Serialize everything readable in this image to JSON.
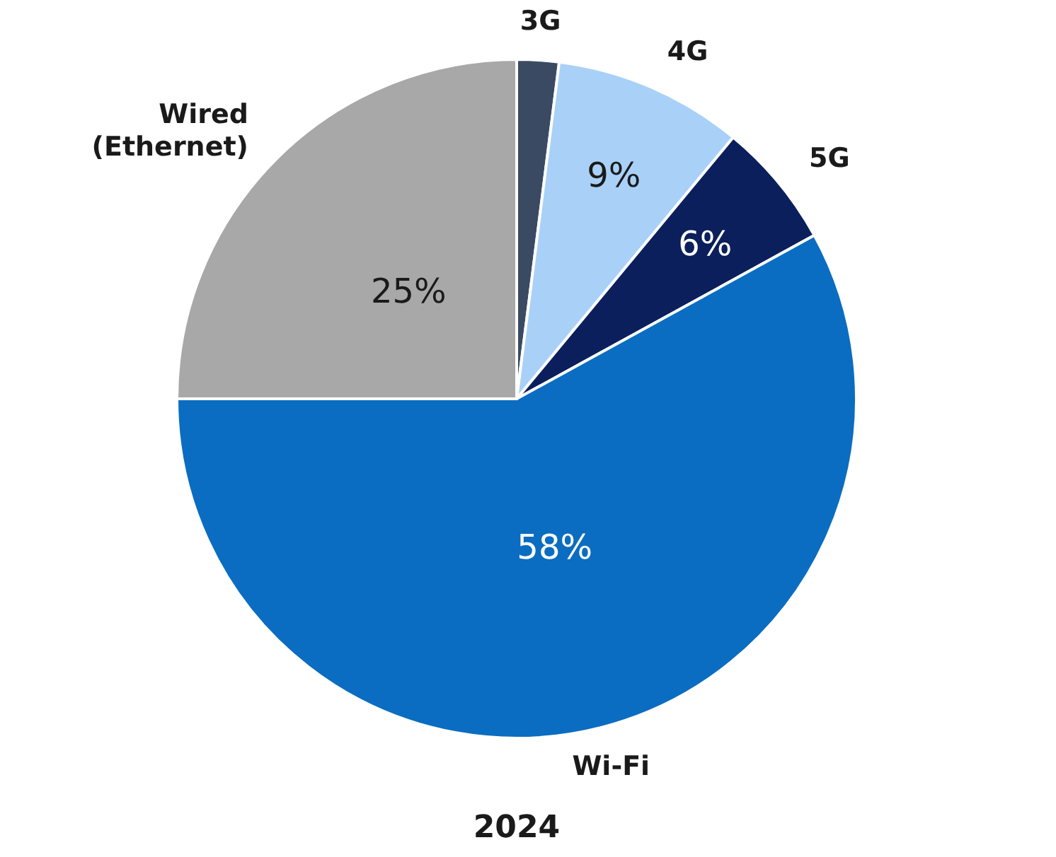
{
  "chart_data": {
    "type": "pie",
    "title": "2024",
    "categories": [
      "3G",
      "4G",
      "5G",
      "Wi-Fi",
      "Wired (Ethernet)"
    ],
    "values": [
      2,
      9,
      6,
      58,
      25
    ],
    "colors": [
      "#3b4a63",
      "#a9d1f7",
      "#0b1f5c",
      "#0a6dc1",
      "#a8a8a8"
    ],
    "value_labels": [
      null,
      "9%",
      "6%",
      "58%",
      "25%"
    ]
  }
}
